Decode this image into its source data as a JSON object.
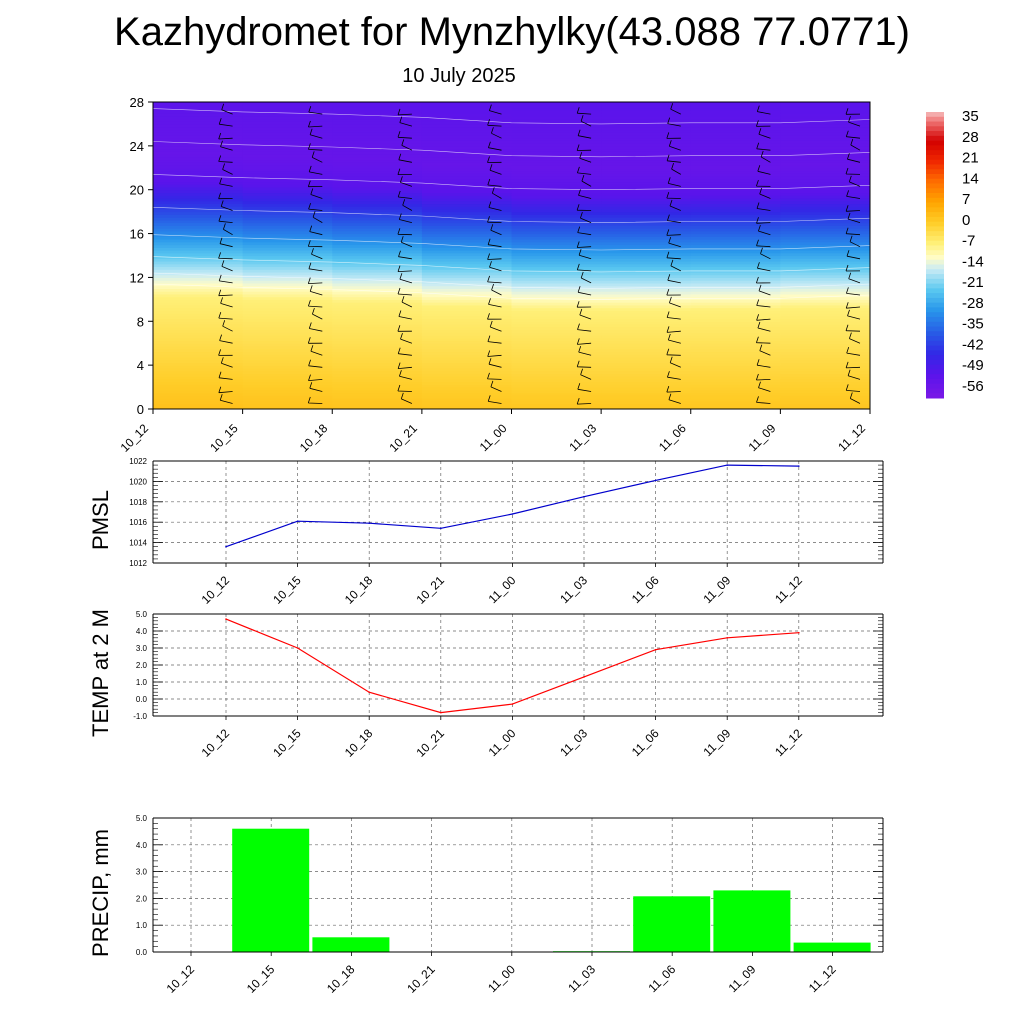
{
  "title": "Kazhydromet for Mynzhylky(43.088 77.0771)",
  "subtitle": "10 July 2025",
  "chart_data": [
    {
      "type": "heatmap",
      "x_labels": [
        "10_12",
        "10_15",
        "10_18",
        "10_21",
        "11_00",
        "11_03",
        "11_06",
        "11_09",
        "11_12"
      ],
      "y_ticks": [
        0,
        4,
        8,
        12,
        16,
        20,
        24,
        28
      ],
      "ylim": [
        0,
        28
      ],
      "freezing_level": [
        10.4,
        10.1,
        9.9,
        9.6,
        9.1,
        9.0,
        9.1,
        9.1,
        9.4
      ],
      "colorbar": {
        "labels": [
          "35",
          "28",
          "21",
          "14",
          "7",
          "0",
          "-7",
          "-14",
          "-21",
          "-28",
          "-35",
          "-42",
          "-49",
          "-56"
        ],
        "range": [
          -60,
          38
        ]
      },
      "wind_barbs": true,
      "grid": false
    },
    {
      "type": "line",
      "ylabel": "PMSL",
      "x_labels": [
        "10_12",
        "10_15",
        "10_18",
        "10_21",
        "11_00",
        "11_03",
        "11_06",
        "11_09",
        "11_12"
      ],
      "values": [
        1013.6,
        1016.1,
        1015.9,
        1015.4,
        1016.8,
        1018.5,
        1020.1,
        1021.6,
        1021.5
      ],
      "ylim": [
        1012,
        1022
      ],
      "y_ticks": [
        1012,
        1014,
        1016,
        1018,
        1020,
        1022
      ],
      "y_tick_labels": [
        "1012",
        "1014",
        "1016",
        "1018",
        "1020",
        "1022"
      ],
      "color": "#0000cc",
      "grid": true
    },
    {
      "type": "line",
      "ylabel": "TEMP at 2 M",
      "x_labels": [
        "10_12",
        "10_15",
        "10_18",
        "10_21",
        "11_00",
        "11_03",
        "11_06",
        "11_09",
        "11_12"
      ],
      "values": [
        4.7,
        3.0,
        0.4,
        -0.8,
        -0.3,
        1.3,
        2.9,
        3.6,
        3.9
      ],
      "ylim": [
        -1,
        5
      ],
      "y_ticks": [
        -1,
        0,
        1,
        2,
        3,
        4,
        5
      ],
      "y_tick_labels": [
        "-1.0",
        "0.0",
        "1.0",
        "2.0",
        "3.0",
        "4.0",
        "5.0"
      ],
      "color": "#ff0000",
      "grid": true
    },
    {
      "type": "bar",
      "ylabel": "PRECIP, mm",
      "x_labels": [
        "10_12",
        "10_15",
        "10_18",
        "10_21",
        "11_00",
        "11_03",
        "11_06",
        "11_09",
        "11_12"
      ],
      "values": [
        0,
        4.6,
        0.55,
        0,
        0,
        0.03,
        2.08,
        2.3,
        0.35
      ],
      "ylim": [
        0,
        5
      ],
      "y_ticks": [
        0,
        1,
        2,
        3,
        4,
        5
      ],
      "y_tick_labels": [
        "0.0",
        "1.0",
        "2.0",
        "3.0",
        "4.0",
        "5.0"
      ],
      "color": "#00ff00",
      "grid": true
    }
  ]
}
